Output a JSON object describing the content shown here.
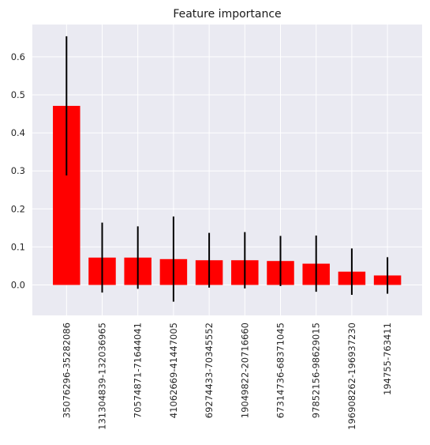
{
  "chart_data": {
    "type": "bar",
    "title": "Feature importance",
    "xlabel": "",
    "ylabel": "",
    "categories": [
      "35076296-35282086",
      "131304839-132036965",
      "70574871-71644041",
      "41062669-41447005",
      "69274433-70345552",
      "19049822-20716660",
      "67314736-68371045",
      "97852156-98629015",
      "196908262-196937230",
      "194755-763411"
    ],
    "values": [
      0.471,
      0.072,
      0.072,
      0.068,
      0.065,
      0.065,
      0.063,
      0.056,
      0.035,
      0.025
    ],
    "errors": [
      0.183,
      0.092,
      0.082,
      0.112,
      0.072,
      0.074,
      0.066,
      0.074,
      0.061,
      0.048
    ],
    "ylim": [
      -0.08,
      0.685
    ],
    "yticks": [
      0.0,
      0.1,
      0.2,
      0.3,
      0.4,
      0.5,
      0.6
    ],
    "ytick_labels": [
      "0.0",
      "0.1",
      "0.2",
      "0.3",
      "0.4",
      "0.5",
      "0.6"
    ],
    "grid": true,
    "bar_color": "#ff0000",
    "error_bar_color": "#000000",
    "background_color": "#eaeaf2",
    "grid_color": "#ffffff"
  }
}
